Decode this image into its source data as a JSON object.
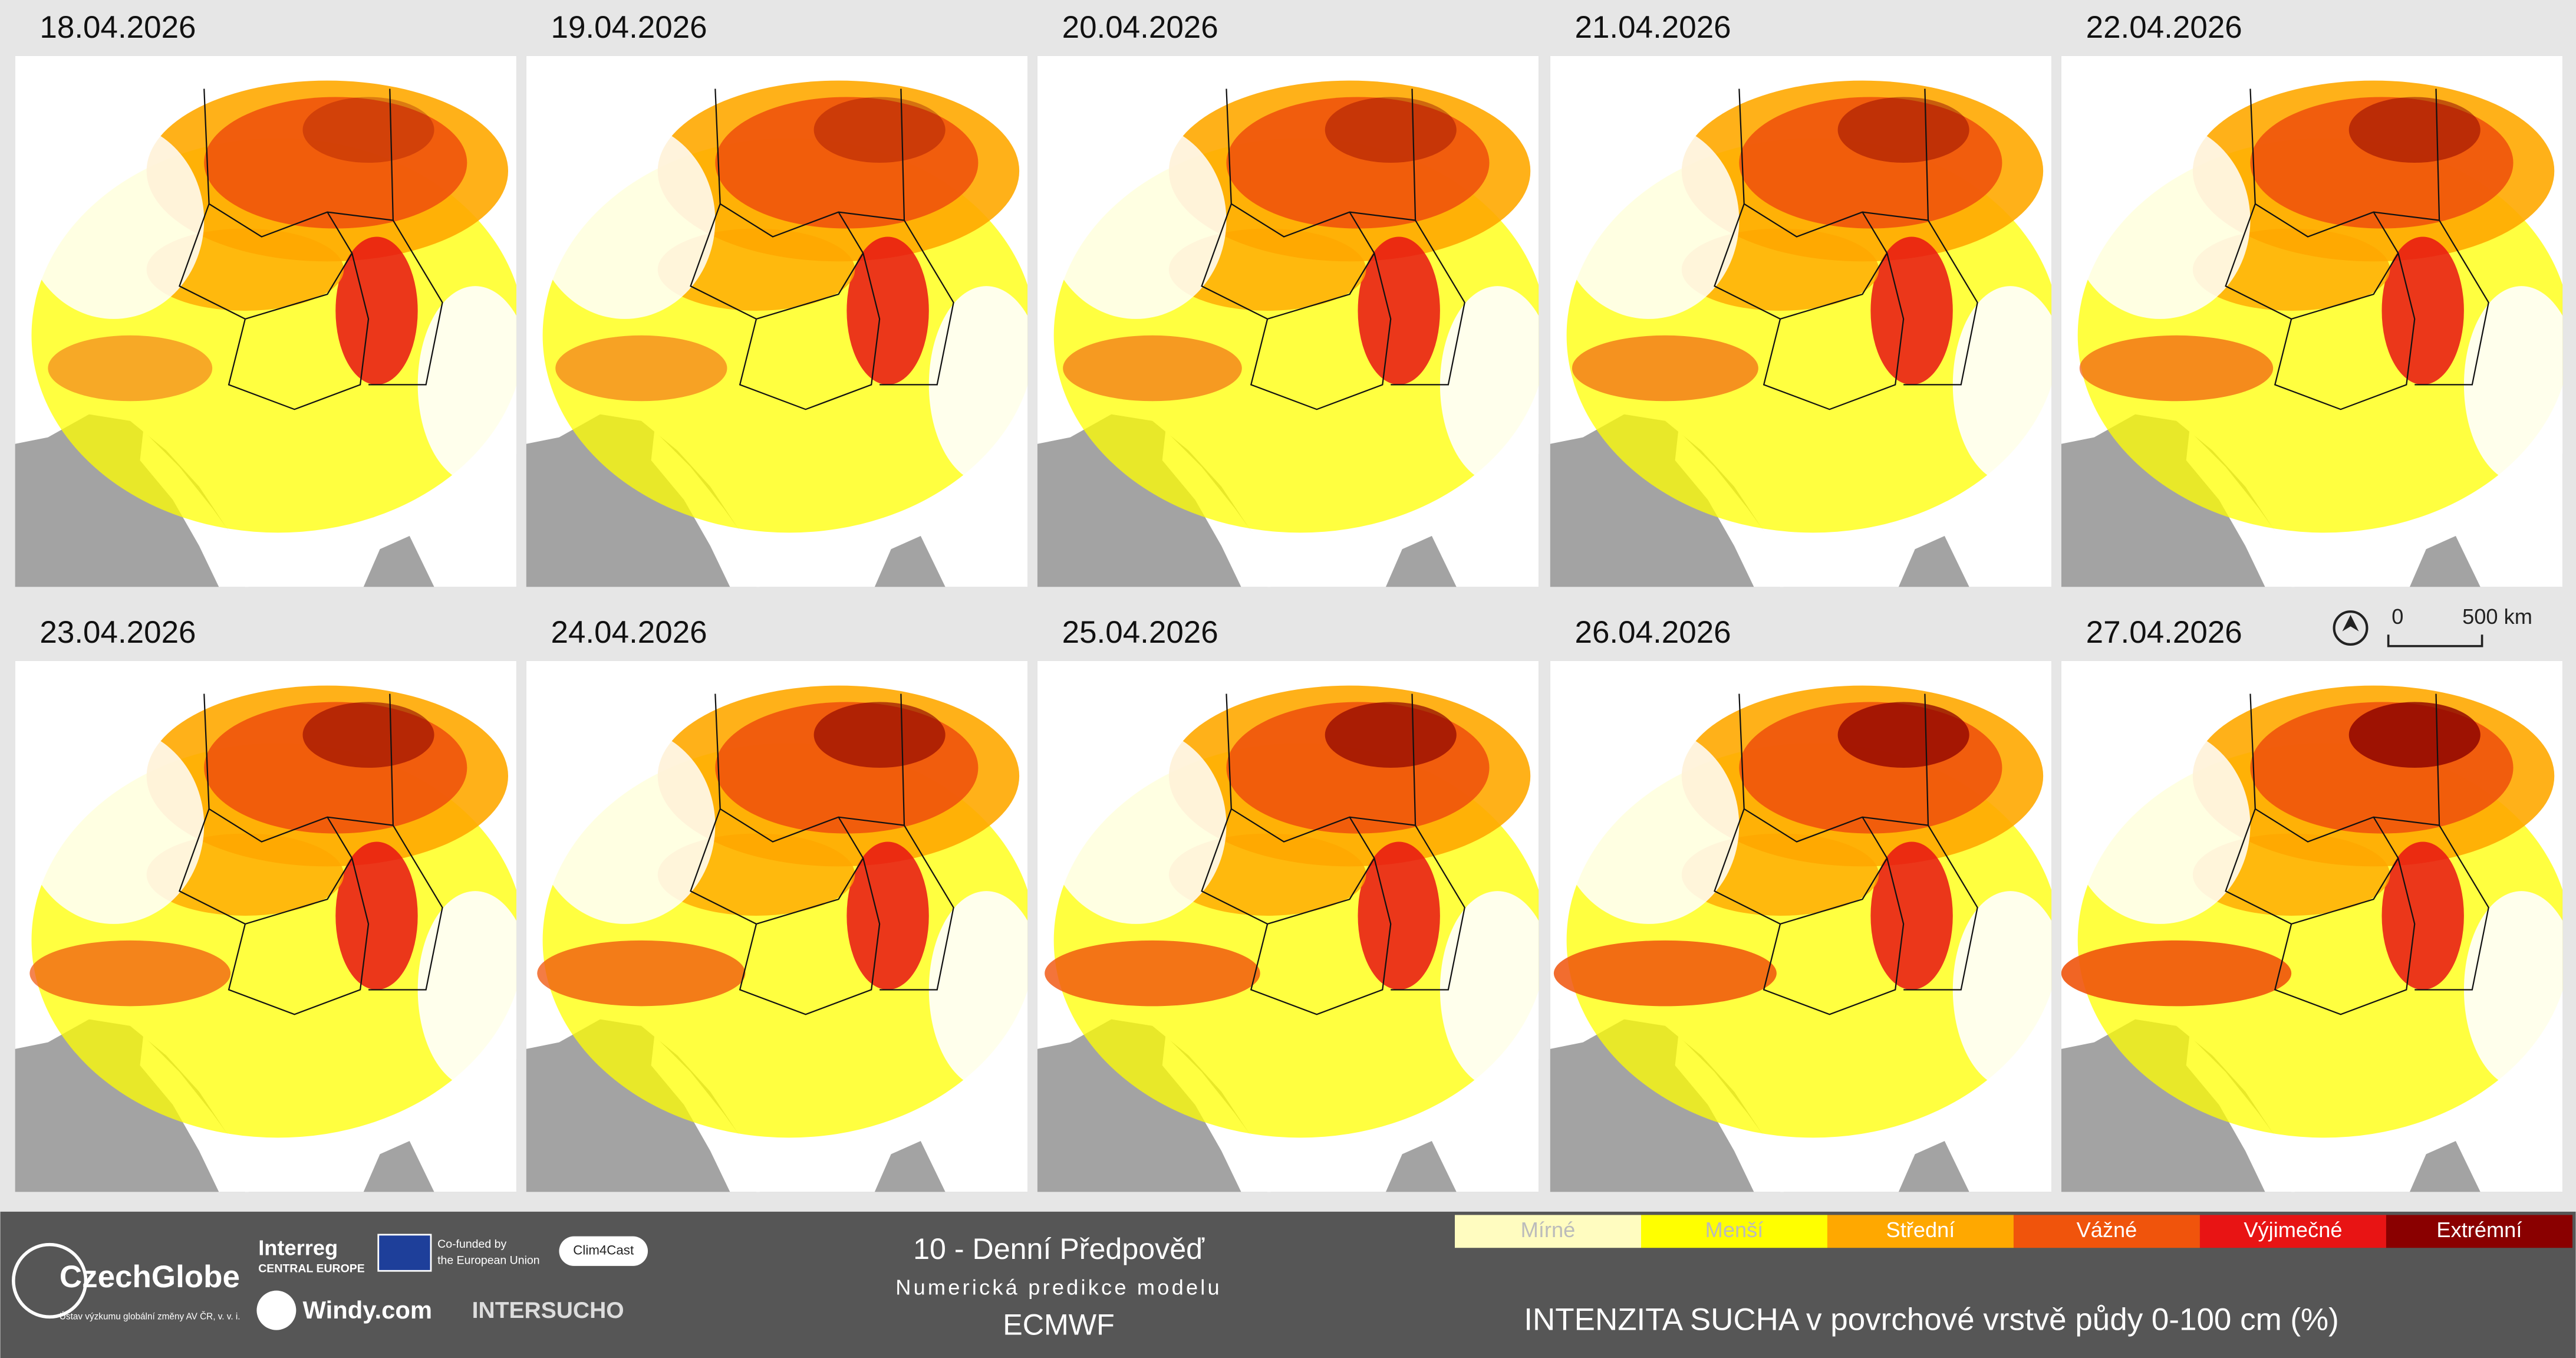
{
  "panels": [
    {
      "date": "18.04.2026"
    },
    {
      "date": "19.04.2026"
    },
    {
      "date": "20.04.2026"
    },
    {
      "date": "21.04.2026"
    },
    {
      "date": "22.04.2026"
    },
    {
      "date": "23.04.2026"
    },
    {
      "date": "24.04.2026"
    },
    {
      "date": "25.04.2026"
    },
    {
      "date": "26.04.2026"
    },
    {
      "date": "27.04.2026"
    }
  ],
  "scale_bar": {
    "start": "0",
    "end": "500 km"
  },
  "footer": {
    "title": "10 - Denní Předpověď",
    "subtitle": "Numerická predikce modelu",
    "model": "ECMWF",
    "logos": {
      "czechglobe": "CzechGlobe",
      "czechglobe_sub": "Ústav výzkumu globální změny AV ČR, v. v. i.",
      "interreg": "Interreg",
      "interreg_sub": "CENTRAL EUROPE",
      "eu_1": "Co-funded by",
      "eu_2": "the European Union",
      "clim4cast": "Clim4Cast",
      "windy": "Windy.com",
      "intersucho": "INTERSUCHO"
    },
    "legend_title": "INTENZITA SUCHA v povrchové vrstvě půdy 0-100 cm (%)",
    "legend": [
      {
        "label": "Mírné",
        "color": "#fffcc0"
      },
      {
        "label": "Menší",
        "color": "#ffff00"
      },
      {
        "label": "Střední",
        "color": "#ffa800"
      },
      {
        "label": "Vážné",
        "color": "#f0540c"
      },
      {
        "label": "Výjimečné",
        "color": "#e81414"
      },
      {
        "label": "Extrémní",
        "color": "#8a0000"
      }
    ]
  }
}
